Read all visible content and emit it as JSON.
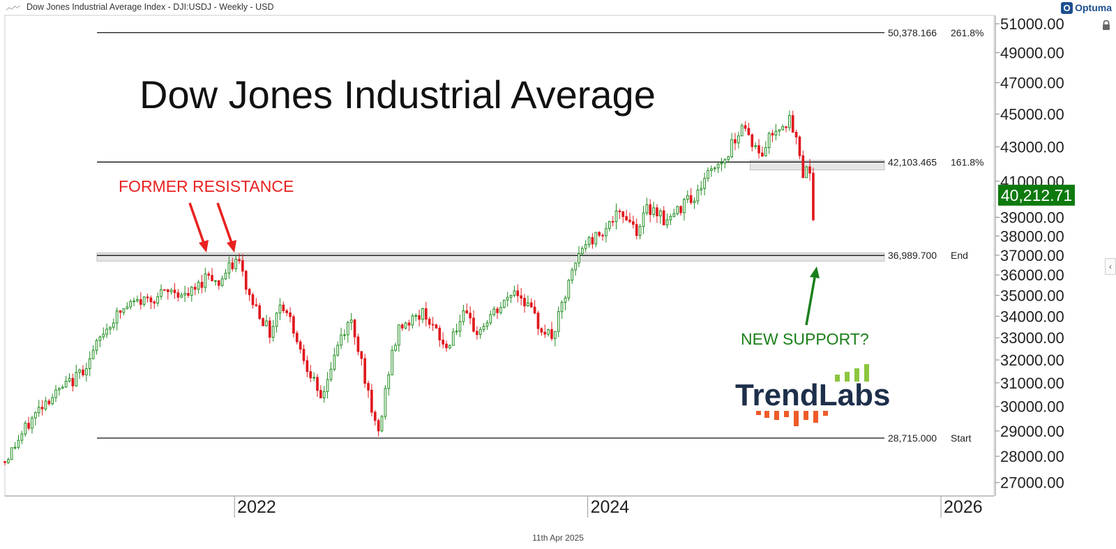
{
  "header": {
    "title": "Dow Jones Industrial Average Index  - DJI:USDJ - Weekly - USD",
    "brand": "Optuma",
    "brand_icon": "optuma-logo-icon"
  },
  "footer": {
    "date": "11th Apr 2025"
  },
  "chart_data": {
    "type": "candlestick",
    "title": "Dow Jones Industrial Average",
    "frequency": "Weekly",
    "currency": "USD",
    "ylim": [
      26500,
      51600
    ],
    "y_ticks": [
      "27000.00",
      "28000.00",
      "29000.00",
      "30000.00",
      "31000.00",
      "32000.00",
      "33000.00",
      "34000.00",
      "35000.00",
      "36000.00",
      "37000.00",
      "38000.00",
      "39000.00",
      "41000.00",
      "43000.00",
      "45000.00",
      "47000.00",
      "49000.00",
      "51000.00"
    ],
    "x_ticks": [
      {
        "label": "2022",
        "year": 2022
      },
      {
        "label": "2024",
        "year": 2024
      },
      {
        "label": "2026",
        "year": 2026
      }
    ],
    "xlim_years": [
      2020.7,
      2026.3
    ],
    "last_price": "40,212.71",
    "last_price_color": "#0e7a0e",
    "up_color": "#1e8c1e",
    "down_color": "#e0191e",
    "fib_levels": [
      {
        "value": 50378.166,
        "label": "50,378.166",
        "tag": "261.8%"
      },
      {
        "value": 42103.465,
        "label": "42,103.465",
        "tag": "161.8%"
      },
      {
        "value": 36989.7,
        "label": "36,989.700",
        "tag": "End"
      },
      {
        "value": 28715.0,
        "label": "28,715.000",
        "tag": "Start"
      }
    ],
    "zones": [
      {
        "low": 41650,
        "high": 42200
      },
      {
        "low": 36700,
        "high": 37120
      }
    ],
    "annotations": [
      {
        "text": "FORMER RESISTANCE",
        "color": "#e8211f"
      },
      {
        "text": "NEW SUPPORT?",
        "color": "#1a7f1a"
      }
    ],
    "watermark": "TrendLabs",
    "path": [
      [
        2020.7,
        27800
      ],
      [
        2020.8,
        28900
      ],
      [
        2020.92,
        30200
      ],
      [
        2021.0,
        30600
      ],
      [
        2021.1,
        31200
      ],
      [
        2021.18,
        32000
      ],
      [
        2021.26,
        33300
      ],
      [
        2021.34,
        34100
      ],
      [
        2021.42,
        34600
      ],
      [
        2021.5,
        34800
      ],
      [
        2021.58,
        35000
      ],
      [
        2021.66,
        35250
      ],
      [
        2021.72,
        34900
      ],
      [
        2021.78,
        35300
      ],
      [
        2021.86,
        36200
      ],
      [
        2021.9,
        35500
      ],
      [
        2021.97,
        36300
      ],
      [
        2022.02,
        36800
      ],
      [
        2022.08,
        35000
      ],
      [
        2022.14,
        34200
      ],
      [
        2022.2,
        33200
      ],
      [
        2022.26,
        34700
      ],
      [
        2022.32,
        33800
      ],
      [
        2022.38,
        32300
      ],
      [
        2022.44,
        31300
      ],
      [
        2022.48,
        30100
      ],
      [
        2022.54,
        31500
      ],
      [
        2022.6,
        33000
      ],
      [
        2022.66,
        33800
      ],
      [
        2022.72,
        32000
      ],
      [
        2022.78,
        29500
      ],
      [
        2022.82,
        28900
      ],
      [
        2022.88,
        31900
      ],
      [
        2022.94,
        33600
      ],
      [
        2023.0,
        33800
      ],
      [
        2023.08,
        34200
      ],
      [
        2023.14,
        33200
      ],
      [
        2023.2,
        32500
      ],
      [
        2023.24,
        33300
      ],
      [
        2023.3,
        34000
      ],
      [
        2023.38,
        33200
      ],
      [
        2023.44,
        33900
      ],
      [
        2023.52,
        34500
      ],
      [
        2023.58,
        35300
      ],
      [
        2023.64,
        34800
      ],
      [
        2023.72,
        33600
      ],
      [
        2023.8,
        33000
      ],
      [
        2023.86,
        34600
      ],
      [
        2023.92,
        36300
      ],
      [
        2023.98,
        37600
      ],
      [
        2024.04,
        37900
      ],
      [
        2024.1,
        38500
      ],
      [
        2024.16,
        39000
      ],
      [
        2024.22,
        39100
      ],
      [
        2024.28,
        38300
      ],
      [
        2024.34,
        39500
      ],
      [
        2024.4,
        39400
      ],
      [
        2024.44,
        38700
      ],
      [
        2024.52,
        39400
      ],
      [
        2024.56,
        40500
      ],
      [
        2024.6,
        39800
      ],
      [
        2024.66,
        41200
      ],
      [
        2024.72,
        41900
      ],
      [
        2024.78,
        42300
      ],
      [
        2024.84,
        43700
      ],
      [
        2024.88,
        44500
      ],
      [
        2024.92,
        43500
      ],
      [
        2024.98,
        42300
      ],
      [
        2025.02,
        43500
      ],
      [
        2025.08,
        44300
      ],
      [
        2025.14,
        44600
      ],
      [
        2025.18,
        43400
      ],
      [
        2025.22,
        41500
      ],
      [
        2025.26,
        41800
      ],
      [
        2025.28,
        38400
      ],
      [
        2025.29,
        40213
      ]
    ]
  }
}
